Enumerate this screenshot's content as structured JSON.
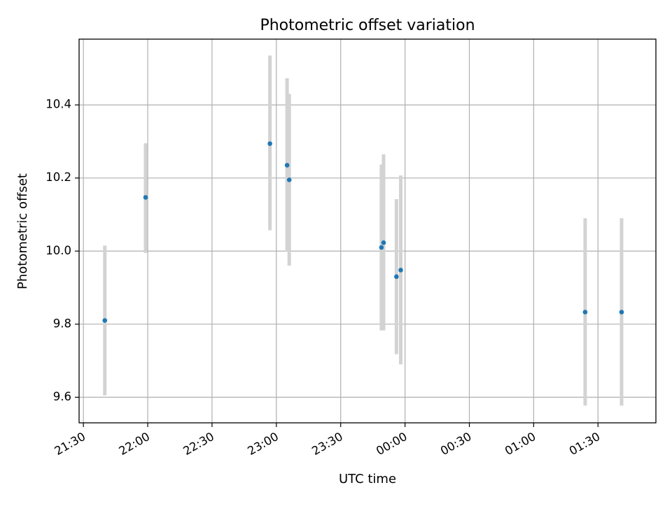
{
  "chart_data": {
    "type": "scatter",
    "title": "Photometric offset variation",
    "xlabel": "UTC time",
    "ylabel": "Photometric offset",
    "x_tick_labels": [
      "21:30",
      "22:00",
      "22:30",
      "23:00",
      "23:30",
      "00:00",
      "00:30",
      "01:00",
      "01:30"
    ],
    "y_tick_labels": [
      "9.6",
      "9.8",
      "10.0",
      "10.2",
      "10.4"
    ],
    "y_ticks": [
      9.6,
      9.8,
      10.0,
      10.2,
      10.4
    ],
    "grid": true,
    "xlim": [
      "21:28",
      "01:57"
    ],
    "ylim": [
      9.53,
      10.58
    ],
    "points": [
      {
        "x": "21:40",
        "y": 9.81,
        "yerr_low": 9.605,
        "yerr_high": 10.015
      },
      {
        "x": "21:59",
        "y": 10.147,
        "yerr_low": 9.995,
        "yerr_high": 10.295
      },
      {
        "x": "22:57",
        "y": 10.294,
        "yerr_low": 10.057,
        "yerr_high": 10.535
      },
      {
        "x": "23:05",
        "y": 10.235,
        "yerr_low": 9.998,
        "yerr_high": 10.473
      },
      {
        "x": "23:06",
        "y": 10.195,
        "yerr_low": 9.96,
        "yerr_high": 10.43
      },
      {
        "x": "23:49",
        "y": 10.01,
        "yerr_low": 9.783,
        "yerr_high": 10.237
      },
      {
        "x": "23:50",
        "y": 10.023,
        "yerr_low": 9.783,
        "yerr_high": 10.265
      },
      {
        "x": "23:56",
        "y": 9.93,
        "yerr_low": 9.718,
        "yerr_high": 10.142
      },
      {
        "x": "23:58",
        "y": 9.948,
        "yerr_low": 9.69,
        "yerr_high": 10.207
      },
      {
        "x": "01:24",
        "y": 9.833,
        "yerr_low": 9.577,
        "yerr_high": 10.09
      },
      {
        "x": "01:41",
        "y": 9.833,
        "yerr_low": 9.577,
        "yerr_high": 10.09
      }
    ],
    "colors": {
      "marker": "#1f77b4",
      "error_bar": "#d3d3d3",
      "grid": "#b0b0b0",
      "axes": "#000000"
    }
  }
}
